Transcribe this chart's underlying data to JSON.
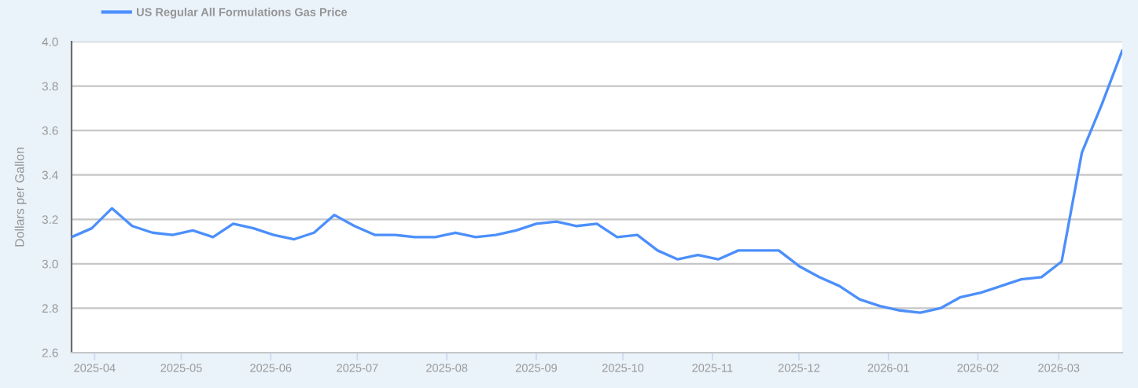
{
  "chart_data": {
    "type": "line",
    "ylabel": "Dollars per Gallon",
    "xlim": [
      "2025-03-24",
      "2026-03-23"
    ],
    "xticks": [
      "2025-04",
      "2025-05",
      "2025-06",
      "2025-07",
      "2025-08",
      "2025-09",
      "2025-10",
      "2025-11",
      "2025-12",
      "2026-01",
      "2026-02",
      "2026-03"
    ],
    "ylim": [
      2.6,
      4.0
    ],
    "yticks": [
      2.6,
      2.8,
      {
        "value": 3,
        "label": "3.0"
      },
      3.2,
      3.4,
      3.6,
      3.8,
      {
        "value": 4,
        "label": "4.0"
      }
    ],
    "grid": "y",
    "legend": "top left",
    "x": [
      "2025-03-24",
      "2025-03-31",
      "2025-04-07",
      "2025-04-14",
      "2025-04-21",
      "2025-04-28",
      "2025-05-05",
      "2025-05-12",
      "2025-05-19",
      "2025-05-26",
      "2025-06-02",
      "2025-06-09",
      "2025-06-16",
      "2025-06-23",
      "2025-06-30",
      "2025-07-07",
      "2025-07-14",
      "2025-07-21",
      "2025-07-28",
      "2025-08-04",
      "2025-08-11",
      "2025-08-18",
      "2025-08-25",
      "2025-09-01",
      "2025-09-08",
      "2025-09-15",
      "2025-09-22",
      "2025-09-29",
      "2025-10-06",
      "2025-10-13",
      "2025-10-20",
      "2025-10-27",
      "2025-11-03",
      "2025-11-10",
      "2025-11-17",
      "2025-11-24",
      "2025-12-01",
      "2025-12-08",
      "2025-12-15",
      "2025-12-22",
      "2025-12-29",
      "2026-01-05",
      "2026-01-12",
      "2026-01-19",
      "2026-01-26",
      "2026-02-02",
      "2026-02-09",
      "2026-02-16",
      "2026-02-23",
      "2026-03-02",
      "2026-03-09",
      "2026-03-16",
      "2026-03-23"
    ],
    "series": [
      {
        "name": "US Regular All Formulations Gas Price",
        "color": "#4c8ffb",
        "values": [
          3.12,
          3.16,
          3.25,
          3.17,
          3.14,
          3.13,
          3.15,
          3.12,
          3.18,
          3.16,
          3.13,
          3.11,
          3.14,
          3.22,
          3.17,
          3.13,
          3.13,
          3.12,
          3.12,
          3.14,
          3.12,
          3.13,
          3.15,
          3.18,
          3.19,
          3.17,
          3.18,
          3.12,
          3.13,
          3.06,
          3.02,
          3.04,
          3.02,
          3.06,
          3.06,
          3.06,
          2.99,
          2.94,
          2.9,
          2.84,
          2.81,
          2.79,
          2.78,
          2.8,
          2.85,
          2.87,
          2.9,
          2.93,
          2.94,
          3.01,
          3.5,
          3.72,
          3.96
        ]
      }
    ]
  }
}
